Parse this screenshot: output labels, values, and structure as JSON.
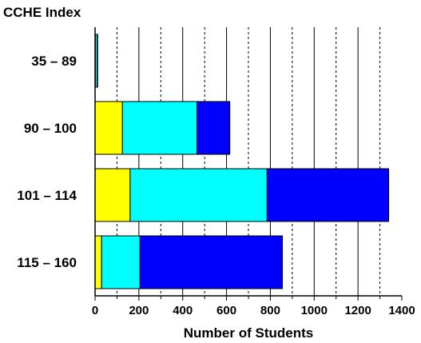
{
  "chart_data": {
    "type": "bar",
    "orientation": "horizontal",
    "stacked": true,
    "title": "CCHE Index",
    "xlabel": "Number of Students",
    "ylabel": "",
    "categories": [
      "35 – 89",
      "90 – 100",
      "101 – 114",
      "115 – 160"
    ],
    "series": [
      {
        "color": "#ffff00",
        "values": [
          2,
          125,
          160,
          30
        ]
      },
      {
        "color": "#00ffff",
        "values": [
          8,
          340,
          625,
          175
        ]
      },
      {
        "color": "#0000ff",
        "values": [
          2,
          150,
          555,
          650
        ]
      }
    ],
    "xlim": [
      0,
      1400
    ],
    "xticks": [
      0,
      200,
      400,
      600,
      800,
      1000,
      1200,
      1400
    ],
    "grid": "vertical, dashed at odd hundreds"
  }
}
